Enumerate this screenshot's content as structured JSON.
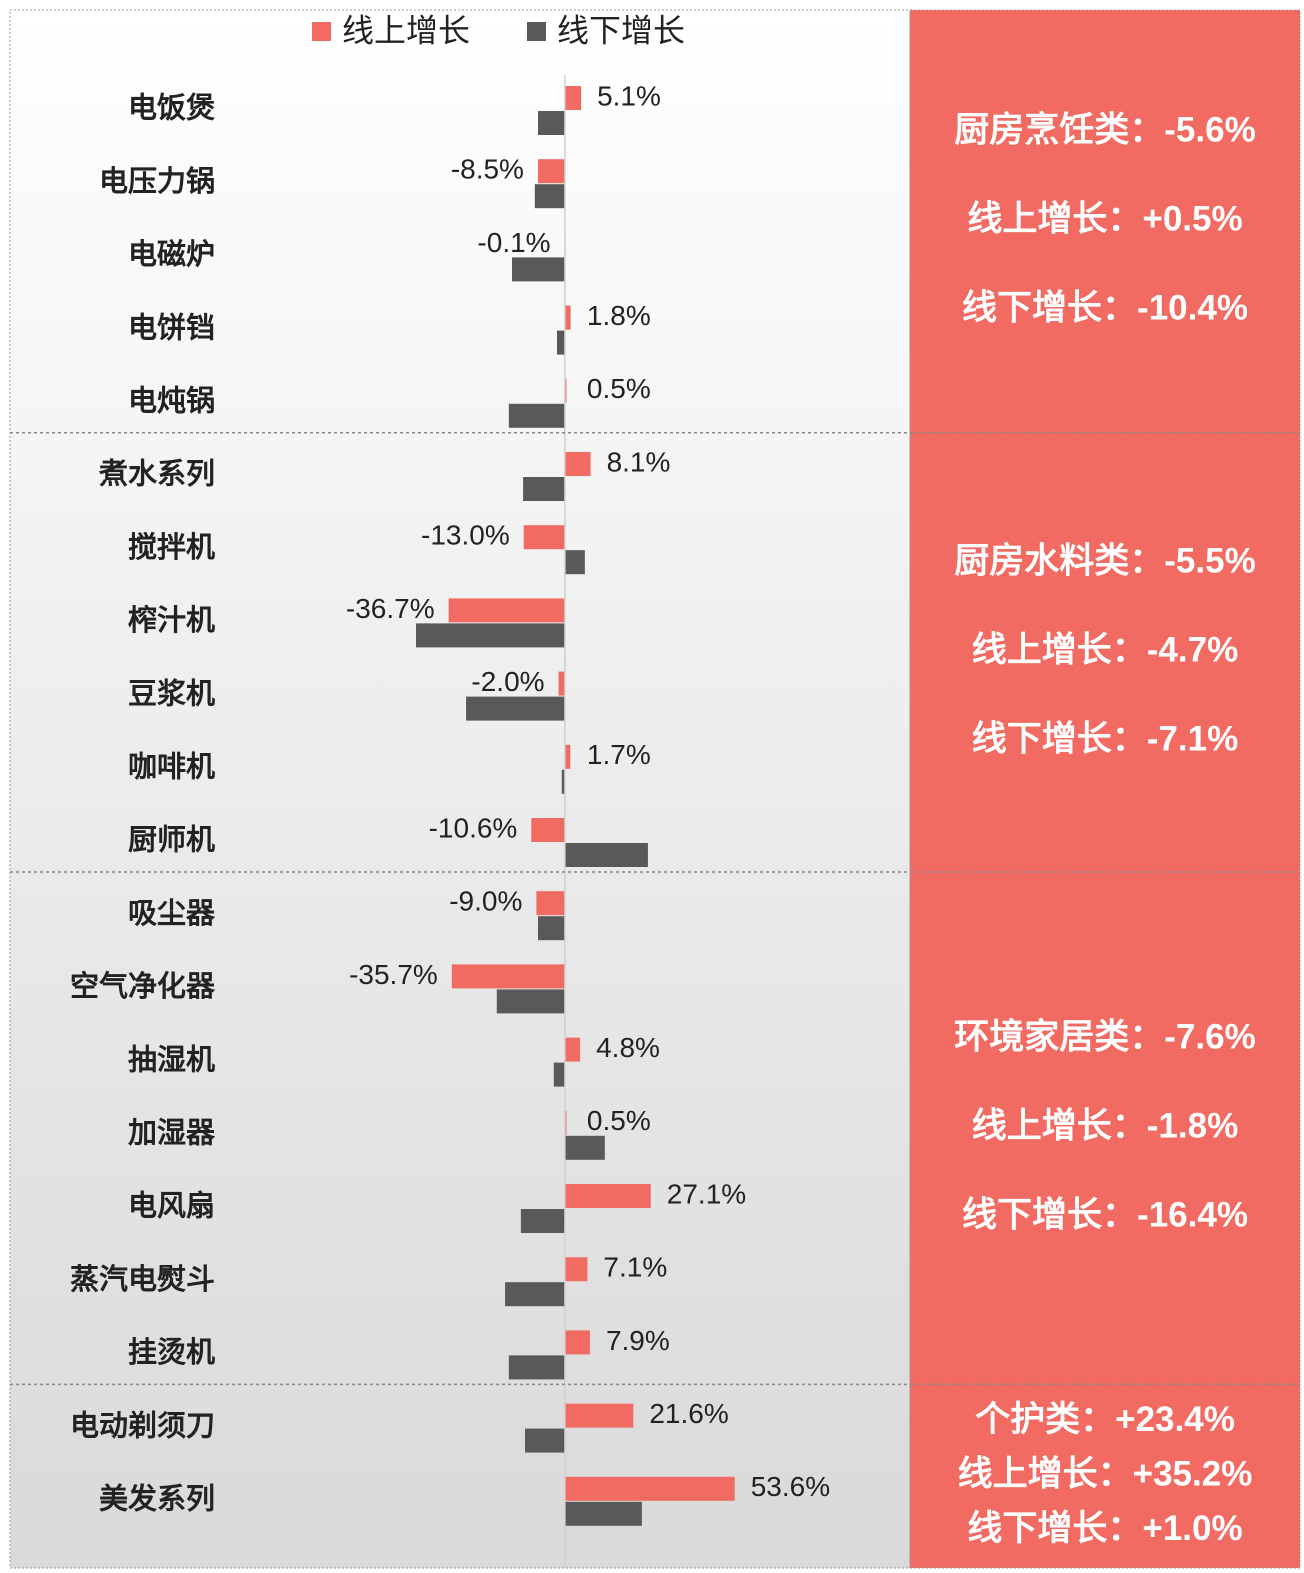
{
  "chart_data": {
    "type": "bar",
    "orientation": "horizontal",
    "categories": [
      "电饭煲",
      "电压力锅",
      "电磁炉",
      "电饼铛",
      "电炖锅",
      "煮水系列",
      "搅拌机",
      "榨汁机",
      "豆浆机",
      "咖啡机",
      "厨师机",
      "吸尘器",
      "空气净化器",
      "抽湿机",
      "加湿器",
      "电风扇",
      "蒸汽电熨斗",
      "挂烫机",
      "电动剃须刀",
      "美发系列"
    ],
    "series": [
      {
        "name": "线上增长",
        "color": "#f26b63",
        "values": [
          5.1,
          -8.5,
          -0.1,
          1.8,
          0.5,
          8.1,
          -13.0,
          -36.7,
          -2.0,
          1.7,
          -10.6,
          -9.0,
          -35.7,
          4.8,
          0.5,
          27.1,
          7.1,
          7.9,
          21.6,
          53.6
        ],
        "value_labels": [
          "5.1%",
          "-8.5%",
          "-0.1%",
          "1.8%",
          "0.5%",
          "8.1%",
          "-13.0%",
          "-36.7%",
          "-2.0%",
          "1.7%",
          "-10.6%",
          "-9.0%",
          "-35.7%",
          "4.8%",
          "0.5%",
          "27.1%",
          "7.1%",
          "7.9%",
          "21.6%",
          "53.6%"
        ]
      },
      {
        "name": "线下增长",
        "color": "#595959",
        "values": [
          -8.5,
          -9.5,
          -16.7,
          -2.5,
          -17.7,
          -13.2,
          6.3,
          -47,
          -31.2,
          -1.0,
          26.2,
          -8.5,
          -21.5,
          -3.5,
          12.6,
          -13.9,
          -18.9,
          -17.7,
          -12.6,
          24.3
        ]
      }
    ],
    "xlim": [
      -50,
      60
    ],
    "legend": "top"
  },
  "panels": [
    [
      "厨房烹饪类：-5.6%",
      "线上增长：+0.5%",
      "线下增长：-10.4%"
    ],
    [
      "厨房水料类：-5.5%",
      "线上增长：-4.7%",
      "线下增长：-7.1%"
    ],
    [
      "环境家居类：-7.6%",
      "线上增长：-1.8%",
      "线下增长：-16.4%"
    ],
    [
      "个护类：+23.4%",
      "线上增长：+35.2%",
      "线下增长：+1.0%"
    ]
  ]
}
